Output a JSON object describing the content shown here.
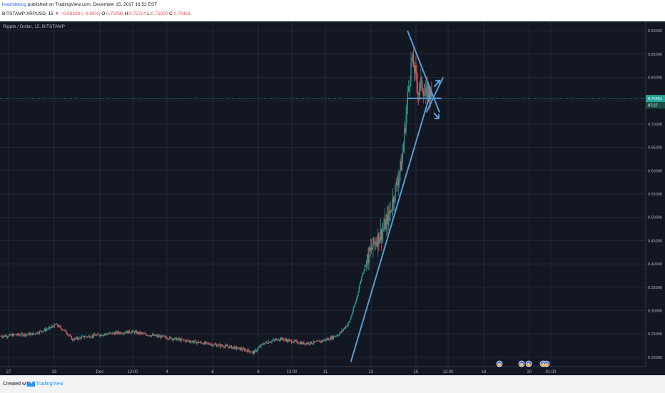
{
  "header": {
    "user": "krashdebug",
    "published": " published on TradingView.com, December 15, 2017 16:52 EST",
    "ticker": "BITSTAMP:XRPUSD, 15",
    "change_arrow": "▼",
    "change": "−0.08339 (−9.95%)",
    "ohlc": [
      {
        "k": "O:",
        "v": "0.75096"
      },
      {
        "k": "H:",
        "v": "0.75724"
      },
      {
        "k": "L:",
        "v": "0.75020"
      },
      {
        "k": "C:",
        "v": "0.75461"
      }
    ]
  },
  "footer": {
    "created": "Created with",
    "brand": "TradingView"
  },
  "colors": {
    "bg": "#131722",
    "grid": "#232838",
    "up": "#26a69a",
    "down": "#ef5350",
    "drawing": "#5b9bd5",
    "price_label": "#26a69a"
  },
  "chart_data": {
    "type": "candlestick",
    "title": "Ripple / Dollar, 15, BITSTAMP",
    "ylim": [
      0.18,
      0.92
    ],
    "y_ticks": [
      "0.90000",
      "0.85000",
      "0.80000",
      "0.75000",
      "0.70000",
      "0.65000",
      "0.60000",
      "0.55000",
      "0.50000",
      "0.45000",
      "0.40000",
      "0.35000",
      "0.30000",
      "0.25000",
      "0.20000"
    ],
    "x_ticks": [
      "27",
      "29",
      "Dec",
      "12:00",
      "4",
      "6",
      "8",
      "12:00",
      "11",
      "13",
      "15",
      "12:00",
      "18",
      "20",
      "01:00"
    ],
    "current_price": "0.75461",
    "countdown": "07:27",
    "price_path": [
      [
        0,
        0.245
      ],
      [
        5,
        0.248
      ],
      [
        10,
        0.25
      ],
      [
        15,
        0.262
      ],
      [
        17,
        0.27
      ],
      [
        20,
        0.255
      ],
      [
        22,
        0.238
      ],
      [
        25,
        0.243
      ],
      [
        30,
        0.248
      ],
      [
        35,
        0.252
      ],
      [
        40,
        0.255
      ],
      [
        45,
        0.248
      ],
      [
        50,
        0.243
      ],
      [
        55,
        0.237
      ],
      [
        60,
        0.232
      ],
      [
        65,
        0.227
      ],
      [
        70,
        0.222
      ],
      [
        75,
        0.215
      ],
      [
        77,
        0.21
      ],
      [
        80,
        0.23
      ],
      [
        85,
        0.24
      ],
      [
        88,
        0.235
      ],
      [
        92,
        0.23
      ],
      [
        96,
        0.232
      ],
      [
        100,
        0.24
      ],
      [
        103,
        0.25
      ],
      [
        106,
        0.275
      ],
      [
        108,
        0.32
      ],
      [
        110,
        0.38
      ],
      [
        112,
        0.42
      ],
      [
        114,
        0.45
      ],
      [
        116,
        0.47
      ],
      [
        118,
        0.5
      ],
      [
        120,
        0.56
      ],
      [
        122,
        0.62
      ],
      [
        123,
        0.7
      ],
      [
        124,
        0.78
      ],
      [
        125,
        0.84
      ],
      [
        126,
        0.81
      ],
      [
        127,
        0.77
      ],
      [
        128,
        0.79
      ],
      [
        129,
        0.76
      ],
      [
        130,
        0.77
      ],
      [
        131,
        0.755
      ]
    ],
    "drawings": [
      {
        "type": "trendline",
        "from": [
          106.5,
          0.19
        ],
        "to": [
          130.8,
          0.77
        ]
      },
      {
        "type": "trendline",
        "from": [
          123.7,
          0.9
        ],
        "to": [
          133.4,
          0.725
        ]
      },
      {
        "type": "trendline",
        "from": [
          123.5,
          0.755
        ],
        "to": [
          134.0,
          0.755
        ]
      },
      {
        "type": "trendline",
        "from": [
          129.4,
          0.725
        ],
        "to": [
          134.5,
          0.8
        ]
      },
      {
        "type": "arrow",
        "direction": "up",
        "at": [
          132.8,
          0.79
        ]
      },
      {
        "type": "arrow",
        "direction": "down",
        "at": [
          132.5,
          0.715
        ]
      }
    ],
    "x_range": [
      0,
      196
    ]
  }
}
